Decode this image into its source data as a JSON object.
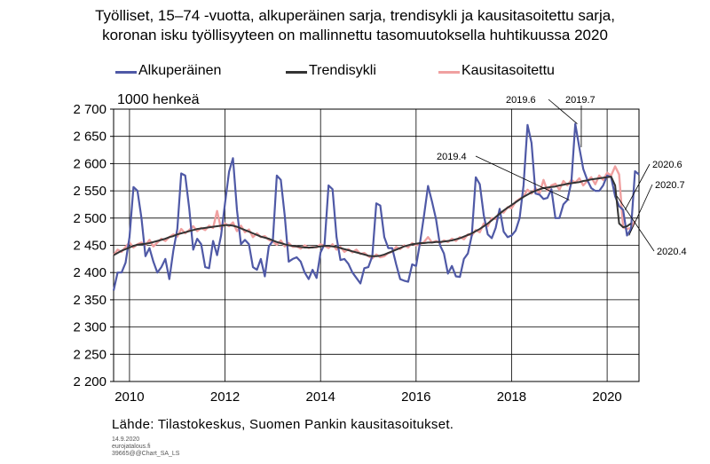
{
  "title_line1": "Työlliset, 15–74 -vuotta, alkuperäinen sarja, trendisykli ja kausitasoitettu sarja,",
  "title_line2": "koronan isku työllisyyteen on mallinnettu tasomuutoksella huhtikuussa 2020",
  "unit_label": "1000 henkeä",
  "source": "Lähde: Tilastokeskus, Suomen Pankin kausitasoitukset.",
  "meta": [
    "14.9.2020",
    "eurojatalous.fi",
    "39665@@Chart_SA_LS"
  ],
  "colors": {
    "original": "#4f59a6",
    "trend": "#333333",
    "seasonal": "#f0a0a0"
  },
  "chart_data": {
    "type": "line",
    "ylim": [
      2200,
      2700
    ],
    "xlim": [
      2009.667,
      2020.667
    ],
    "y_ticks": [
      2200,
      2250,
      2300,
      2350,
      2400,
      2450,
      2500,
      2550,
      2600,
      2650,
      2700
    ],
    "y_tick_labels": [
      "2 200",
      "2 250",
      "2 300",
      "2 350",
      "2 400",
      "2 450",
      "2 500",
      "2 550",
      "2 600",
      "2 650",
      "2 700"
    ],
    "x_ticks": [
      2010,
      2012,
      2014,
      2016,
      2018,
      2020
    ],
    "x_tick_labels": [
      "2010",
      "2012",
      "2014",
      "2016",
      "2018",
      "2020"
    ],
    "grid": true,
    "legend_position": "top",
    "series": [
      {
        "name": "Alkuperäinen",
        "key": "original",
        "x_start": 2009.667,
        "values": [
          2367,
          2400,
          2400,
          2418,
          2465,
          2557,
          2550,
          2500,
          2430,
          2445,
          2420,
          2400,
          2410,
          2425,
          2388,
          2440,
          2480,
          2582,
          2578,
          2518,
          2442,
          2462,
          2452,
          2410,
          2408,
          2458,
          2432,
          2468,
          2528,
          2585,
          2610,
          2515,
          2452,
          2460,
          2452,
          2410,
          2405,
          2425,
          2393,
          2448,
          2458,
          2578,
          2570,
          2505,
          2420,
          2425,
          2428,
          2420,
          2400,
          2388,
          2405,
          2390,
          2437,
          2452,
          2560,
          2553,
          2465,
          2423,
          2425,
          2416,
          2400,
          2390,
          2380,
          2408,
          2410,
          2430,
          2527,
          2523,
          2465,
          2445,
          2445,
          2415,
          2388,
          2385,
          2383,
          2415,
          2412,
          2455,
          2505,
          2559,
          2530,
          2498,
          2450,
          2435,
          2398,
          2412,
          2393,
          2392,
          2425,
          2435,
          2468,
          2575,
          2562,
          2505,
          2470,
          2463,
          2482,
          2517,
          2475,
          2465,
          2468,
          2477,
          2500,
          2560,
          2671,
          2638,
          2545,
          2543,
          2535,
          2537,
          2553,
          2500,
          2500,
          2525,
          2533,
          2566,
          2673,
          2630,
          2590,
          2570,
          2555,
          2550,
          2550,
          2560,
          2578,
          2575,
          2540,
          2522,
          2515,
          2468,
          2480,
          2586,
          2580
        ]
      },
      {
        "name": "Trendisykli",
        "key": "trend",
        "x_start": 2009.667,
        "values": [
          2432,
          2436,
          2440,
          2443,
          2446,
          2449,
          2451,
          2452,
          2453,
          2454,
          2456,
          2458,
          2460,
          2462,
          2465,
          2467,
          2470,
          2472,
          2474,
          2476,
          2478,
          2480,
          2481,
          2482,
          2483,
          2484,
          2485,
          2486,
          2487,
          2487,
          2486,
          2484,
          2481,
          2478,
          2475,
          2472,
          2469,
          2466,
          2464,
          2462,
          2459,
          2456,
          2454,
          2452,
          2450,
          2449,
          2448,
          2447,
          2446,
          2446,
          2446,
          2447,
          2448,
          2449,
          2449,
          2448,
          2447,
          2445,
          2443,
          2441,
          2439,
          2437,
          2435,
          2433,
          2431,
          2430,
          2430,
          2431,
          2433,
          2436,
          2439,
          2442,
          2445,
          2448,
          2450,
          2452,
          2453,
          2454,
          2454,
          2455,
          2455,
          2456,
          2456,
          2457,
          2458,
          2459,
          2461,
          2463,
          2466,
          2469,
          2472,
          2476,
          2480,
          2485,
          2490,
          2496,
          2502,
          2508,
          2514,
          2519,
          2524,
          2529,
          2534,
          2539,
          2543,
          2547,
          2550,
          2553,
          2555,
          2556,
          2557,
          2558,
          2560,
          2561,
          2563,
          2564,
          2565,
          2566,
          2568,
          2569,
          2571,
          2572,
          2573,
          2574,
          2575,
          2576,
          2560,
          2490,
          2483,
          2485,
          2490
        ]
      },
      {
        "name": "Kausitasoitettu",
        "key": "seasonal",
        "x_start": 2009.667,
        "values": [
          2432,
          2442,
          2438,
          2447,
          2455,
          2446,
          2452,
          2455,
          2450,
          2460,
          2448,
          2455,
          2462,
          2458,
          2465,
          2470,
          2466,
          2480,
          2472,
          2478,
          2485,
          2476,
          2482,
          2478,
          2486,
          2482,
          2513,
          2480,
          2490,
          2485,
          2492,
          2476,
          2486,
          2474,
          2479,
          2465,
          2472,
          2465,
          2467,
          2460,
          2457,
          2451,
          2459,
          2448,
          2454,
          2447,
          2448,
          2444,
          2450,
          2445,
          2447,
          2446,
          2452,
          2449,
          2445,
          2452,
          2442,
          2447,
          2438,
          2443,
          2437,
          2442,
          2434,
          2436,
          2430,
          2426,
          2433,
          2428,
          2430,
          2436,
          2438,
          2447,
          2443,
          2450,
          2446,
          2454,
          2450,
          2452,
          2456,
          2465,
          2455,
          2458,
          2454,
          2459,
          2456,
          2462,
          2458,
          2465,
          2461,
          2470,
          2468,
          2478,
          2474,
          2490,
          2485,
          2500,
          2498,
          2512,
          2510,
          2520,
          2518,
          2530,
          2535,
          2540,
          2552,
          2545,
          2555,
          2545,
          2570,
          2550,
          2560,
          2563,
          2552,
          2568,
          2560,
          2570,
          2565,
          2573,
          2560,
          2568,
          2575,
          2562,
          2578,
          2570,
          2583,
          2578,
          2595,
          2580,
          2483,
          2480,
          2482,
          2495
        ]
      }
    ],
    "annotations": [
      {
        "text": "2019.6",
        "point_x": 2019.375
      },
      {
        "text": "2019.7",
        "point_x": 2019.458
      },
      {
        "text": "2019.4",
        "point_x": 2019.208
      },
      {
        "text": "2020.6",
        "point_x": 2020.375
      },
      {
        "text": "2020.7",
        "point_x": 2020.458
      },
      {
        "text": "2020.4",
        "point_x": 2020.208
      }
    ]
  }
}
